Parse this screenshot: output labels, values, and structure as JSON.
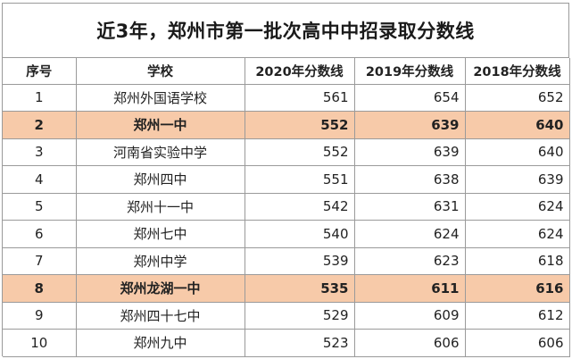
{
  "title": "近3年，郑州市第一批次高中中招录取分数线",
  "headers": {
    "no": "序号",
    "school": "学校",
    "y2020": "2020年分数线",
    "y2019": "2019年分数线",
    "y2018": "2018年分数线"
  },
  "rows": [
    {
      "no": "1",
      "school": "郑州外国语学校",
      "y2020": "561",
      "y2019": "654",
      "y2018": "652",
      "highlight": false
    },
    {
      "no": "2",
      "school": "郑州一中",
      "y2020": "552",
      "y2019": "639",
      "y2018": "640",
      "highlight": true
    },
    {
      "no": "3",
      "school": "河南省实验中学",
      "y2020": "552",
      "y2019": "639",
      "y2018": "640",
      "highlight": false
    },
    {
      "no": "4",
      "school": "郑州四中",
      "y2020": "551",
      "y2019": "638",
      "y2018": "639",
      "highlight": false
    },
    {
      "no": "5",
      "school": "郑州十一中",
      "y2020": "542",
      "y2019": "631",
      "y2018": "624",
      "highlight": false
    },
    {
      "no": "6",
      "school": "郑州七中",
      "y2020": "540",
      "y2019": "624",
      "y2018": "624",
      "highlight": false
    },
    {
      "no": "7",
      "school": "郑州中学",
      "y2020": "539",
      "y2019": "623",
      "y2018": "618",
      "highlight": false
    },
    {
      "no": "8",
      "school": "郑州龙湖一中",
      "y2020": "535",
      "y2019": "611",
      "y2018": "616",
      "highlight": true
    },
    {
      "no": "9",
      "school": "郑州四十七中",
      "y2020": "529",
      "y2019": "609",
      "y2018": "612",
      "highlight": false
    },
    {
      "no": "10",
      "school": "郑州九中",
      "y2020": "523",
      "y2019": "606",
      "y2018": "606",
      "highlight": false
    }
  ],
  "colors": {
    "highlight_row": "#f7caa9",
    "grid_line": "#9a9a9a"
  }
}
